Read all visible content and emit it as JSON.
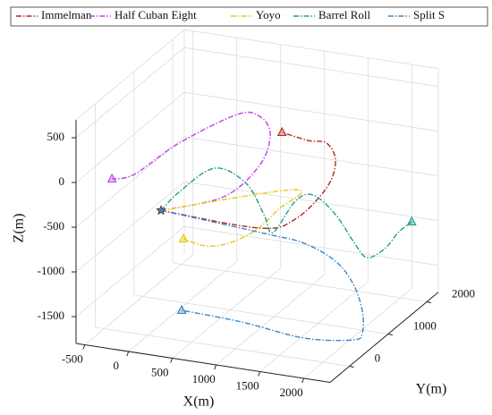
{
  "chart_data": {
    "type": "line3d",
    "x_label": "X(m)",
    "y_label": "Y(m)",
    "z_label": "Z(m)",
    "xlim": [
      -600,
      2300
    ],
    "ylim": [
      -500,
      2300
    ],
    "zlim": [
      -1800,
      700
    ],
    "xticks": [
      -500,
      0,
      500,
      1000,
      1500,
      2000
    ],
    "yticks": [
      0,
      1000,
      2000
    ],
    "zticks": [
      -1500,
      -1000,
      -500,
      0,
      500
    ],
    "grid": true,
    "legend": "top",
    "series": [
      {
        "name": "Immelman",
        "color": "#b5261e",
        "x": [
          150,
          1141,
          1461,
          1731,
          1789,
          1643,
          1439,
          1133
        ],
        "y": [
          0,
          300,
          500,
          700,
          800,
          900,
          900,
          900
        ],
        "z": [
          -380,
          -537,
          -461,
          -142,
          130,
          272,
          270,
          316
        ]
      },
      {
        "name": "Half Cuban Eight",
        "color": "#c43cf0",
        "x": [
          150,
          777,
          1097,
          1176,
          1009,
          754,
          91,
          -354,
          -587
        ],
        "y": [
          0,
          200,
          400,
          500,
          600,
          600,
          600,
          450,
          400
        ],
        "z": [
          -380,
          -205,
          121,
          446,
          585,
          567,
          148,
          -215,
          -282
        ]
      },
      {
        "name": "Yoyo",
        "color": "#e2cc10",
        "x": [
          150,
          1505,
          1301,
          1090,
          828,
          572,
          317
        ],
        "y": [
          0,
          400,
          400,
          300,
          200,
          200,
          200
        ],
        "z": [
          -380,
          -88,
          -349,
          -574,
          -718,
          -786,
          -744
        ]
      },
      {
        "name": "Barrel Roll",
        "color": "#1f9e8c",
        "x": [
          150,
          354,
          718,
          1032,
          1192,
          1250,
          1373,
          1534,
          1745,
          1905,
          2014,
          2131,
          2196,
          2261
        ],
        "y": [
          0,
          0,
          100,
          200,
          300,
          400,
          700,
          800,
          900,
          1000,
          1100,
          1300,
          1500,
          1700
        ],
        "z": [
          -380,
          -147,
          142,
          -17,
          -379,
          -606,
          -346,
          -288,
          -512,
          -824,
          -1024,
          -978,
          -860,
          -802
        ]
      },
      {
        "name": "Split S",
        "color": "#3b86c6",
        "x": [
          150,
          1331,
          1651,
          1920,
          2081,
          2183,
          2227,
          2168,
          1695,
          1024,
          385
        ],
        "y": [
          0,
          100,
          300,
          500,
          600,
          600,
          500,
          400,
          200,
          100,
          0
        ],
        "z": [
          -380,
          -506,
          -630,
          -862,
          -1134,
          -1419,
          -1616,
          -1669,
          -1648,
          -1532,
          -1462
        ]
      }
    ]
  }
}
